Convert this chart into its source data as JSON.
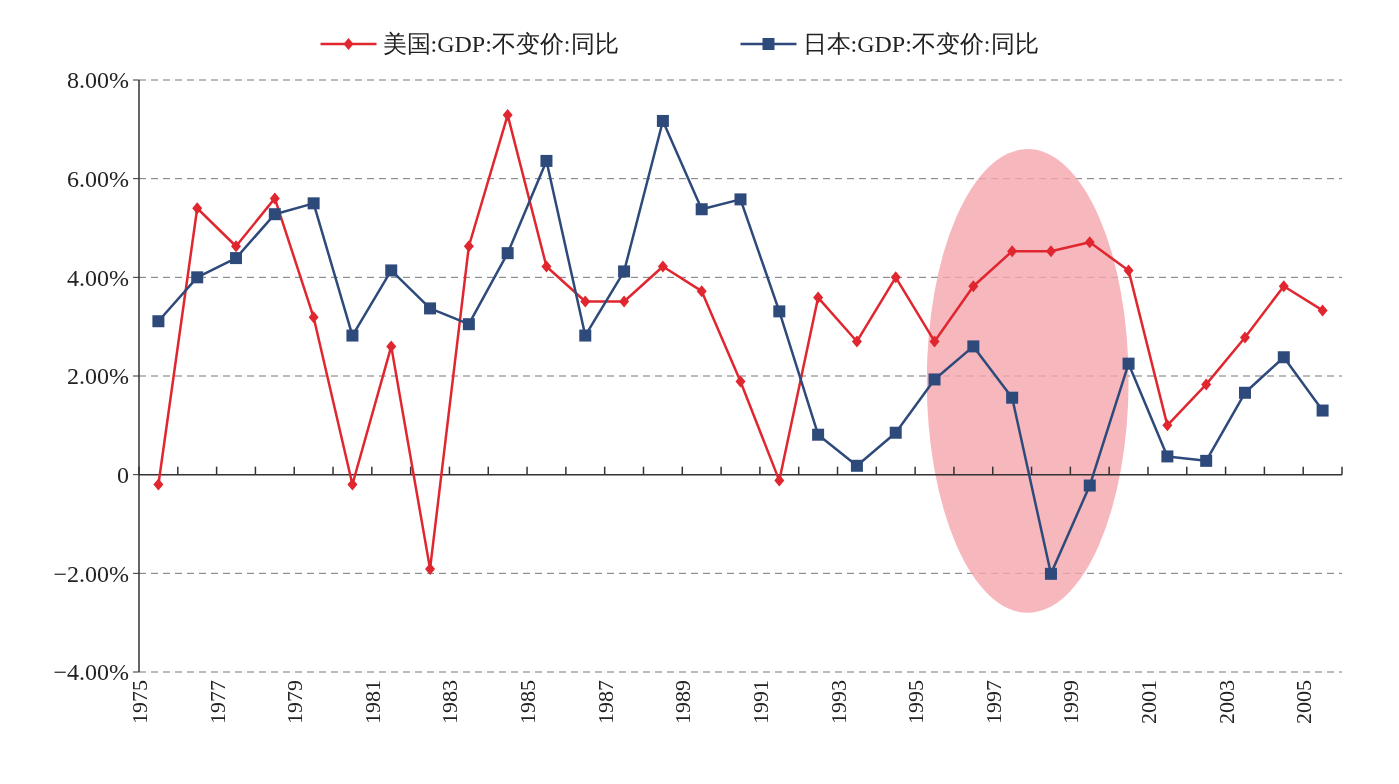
{
  "chart_data": {
    "type": "line",
    "x": [
      1975.5,
      1976.5,
      1977.5,
      1978.5,
      1979.5,
      1980.5,
      1981.5,
      1982.5,
      1983.5,
      1984.5,
      1985.5,
      1986.5,
      1987.5,
      1988.5,
      1989.5,
      1990.5,
      1991.5,
      1992.5,
      1993.5,
      1994.5,
      1995.5,
      1996.5,
      1997.5,
      1998.5,
      1999.5,
      2000.5,
      2001.5,
      2002.5,
      2003.5,
      2004.5,
      2005.5
    ],
    "series": [
      {
        "name": "美国:GDP:不变价:同比",
        "color": "#e0262f",
        "marker": "diamond",
        "values": [
          -0.2,
          5.4,
          4.63,
          5.6,
          3.19,
          -0.2,
          2.6,
          -1.91,
          4.63,
          7.29,
          4.22,
          3.51,
          3.51,
          4.22,
          3.72,
          1.89,
          -0.12,
          3.59,
          2.7,
          4.0,
          2.7,
          3.82,
          4.53,
          4.53,
          4.71,
          4.14,
          1.0,
          1.83,
          2.78,
          3.82,
          3.33
        ]
      },
      {
        "name": "日本:GDP:不变价:同比",
        "color": "#2e4a7a",
        "marker": "square",
        "values": [
          3.11,
          4.0,
          4.39,
          5.28,
          5.5,
          2.82,
          4.14,
          3.37,
          3.05,
          4.49,
          6.36,
          2.82,
          4.12,
          7.17,
          5.38,
          5.58,
          3.31,
          0.81,
          0.18,
          0.85,
          1.93,
          2.6,
          1.56,
          -2.01,
          -0.22,
          2.25,
          0.37,
          0.28,
          1.66,
          2.38,
          1.3
        ]
      }
    ],
    "xlim": [
      1975,
      2006
    ],
    "xticks": [
      1975,
      {
        "value": 1976,
        "label": null
      },
      1977,
      {
        "value": 1978,
        "label": null
      },
      1979,
      {
        "value": 1980,
        "label": null
      },
      1981,
      {
        "value": 1982,
        "label": null
      },
      1983,
      {
        "value": 1984,
        "label": null
      },
      1985,
      {
        "value": 1986,
        "label": null
      },
      1987,
      {
        "value": 1988,
        "label": null
      },
      1989,
      {
        "value": 1990,
        "label": null
      },
      1991,
      {
        "value": 1992,
        "label": null
      },
      1993,
      {
        "value": 1994,
        "label": null
      },
      1995,
      {
        "value": 1996,
        "label": null
      },
      1997,
      {
        "value": 1998,
        "label": null
      },
      1999,
      {
        "value": 2000,
        "label": null
      },
      2001,
      {
        "value": 2002,
        "label": null
      },
      2003,
      {
        "value": 2004,
        "label": null
      },
      2005,
      {
        "value": 2006,
        "label": null
      }
    ],
    "ylim": [
      -4,
      8
    ],
    "yticks": [
      {
        "value": -4,
        "label": "−4.00%"
      },
      {
        "value": -2,
        "label": "−2.00%"
      },
      0,
      {
        "value": 2,
        "label": "2.00%"
      },
      {
        "value": 4,
        "label": "4.00%"
      },
      {
        "value": 6,
        "label": "6.00%"
      },
      {
        "value": 8,
        "label": "8.00%"
      }
    ],
    "grid": "y",
    "legend": "top",
    "line_style": "solid"
  }
}
